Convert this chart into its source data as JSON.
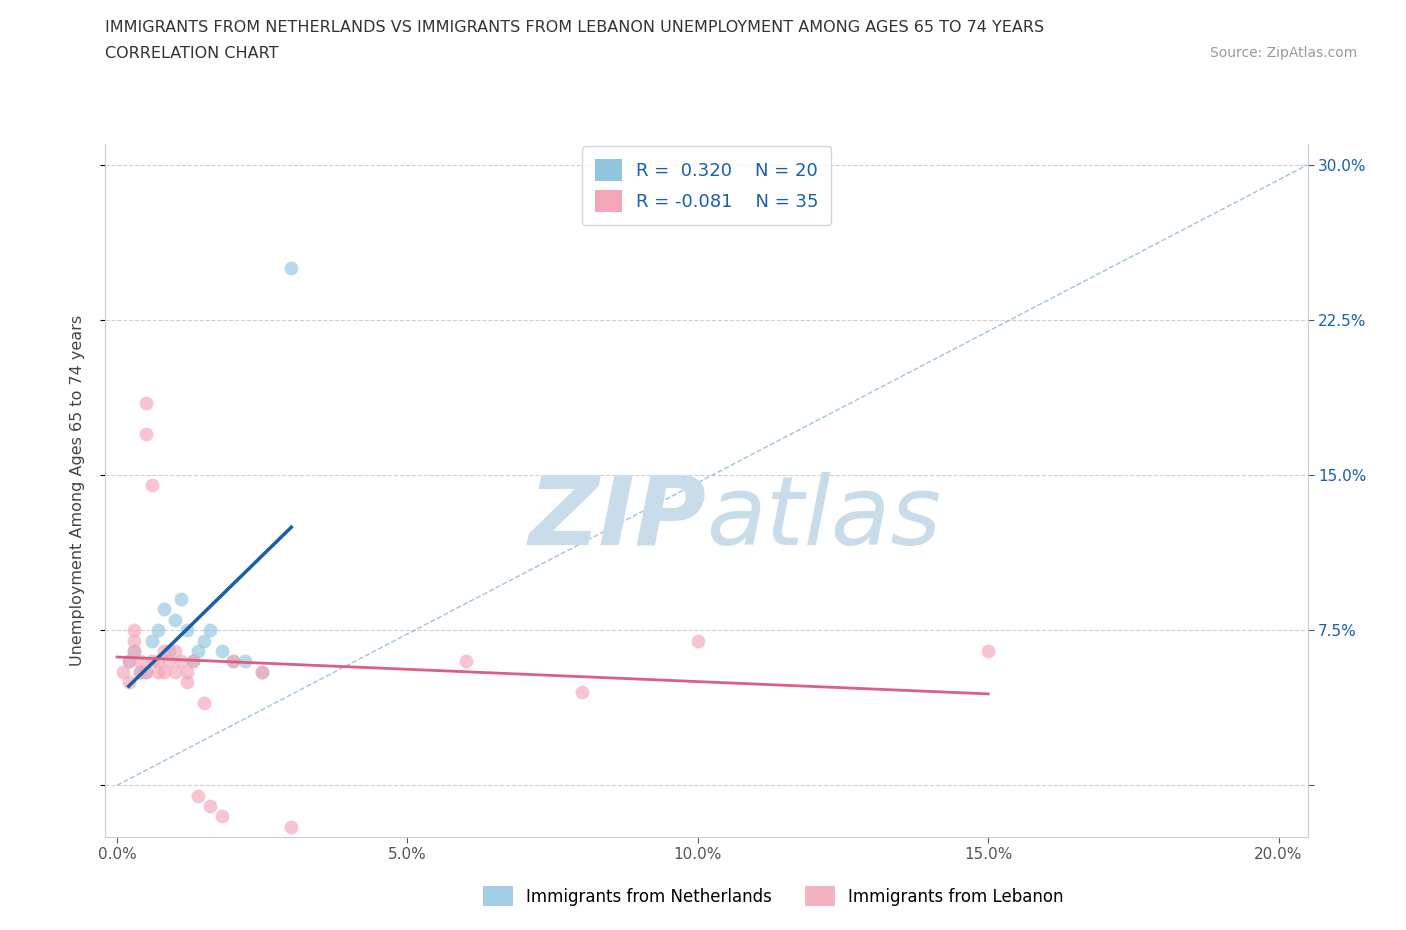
{
  "title_line1": "IMMIGRANTS FROM NETHERLANDS VS IMMIGRANTS FROM LEBANON UNEMPLOYMENT AMONG AGES 65 TO 74 YEARS",
  "title_line2": "CORRELATION CHART",
  "source_text": "Source: ZipAtlas.com",
  "ylabel": "Unemployment Among Ages 65 to 74 years",
  "legend_label1": "Immigrants from Netherlands",
  "legend_label2": "Immigrants from Lebanon",
  "r1": 0.32,
  "n1": 20,
  "r2": -0.081,
  "n2": 35,
  "xlim": [
    -0.002,
    0.205
  ],
  "ylim": [
    -0.025,
    0.31
  ],
  "xticks": [
    0.0,
    0.05,
    0.1,
    0.15,
    0.2
  ],
  "yticks": [
    0.0,
    0.075,
    0.15,
    0.225,
    0.3
  ],
  "xticklabels": [
    "0.0%",
    "5.0%",
    "10.0%",
    "15.0%",
    "20.0%"
  ],
  "yticklabels_right": [
    "",
    "7.5%",
    "15.0%",
    "22.5%",
    "30.0%"
  ],
  "color_netherlands": "#92c5de",
  "color_lebanon": "#f4a6b8",
  "scatter_alpha": 0.65,
  "scatter_size": 100,
  "background_color": "#ffffff",
  "grid_color": "#d0d0d0",
  "watermark_zip_color": "#c8dcea",
  "watermark_atlas_color": "#c8dcea",
  "netherlands_x": [
    0.002,
    0.003,
    0.004,
    0.005,
    0.006,
    0.007,
    0.008,
    0.009,
    0.01,
    0.011,
    0.012,
    0.013,
    0.014,
    0.015,
    0.016,
    0.018,
    0.02,
    0.022,
    0.025,
    0.03
  ],
  "netherlands_y": [
    0.06,
    0.065,
    0.055,
    0.055,
    0.07,
    0.075,
    0.085,
    0.065,
    0.08,
    0.09,
    0.075,
    0.06,
    0.065,
    0.07,
    0.075,
    0.065,
    0.06,
    0.06,
    0.055,
    0.25
  ],
  "lebanon_x": [
    0.001,
    0.002,
    0.002,
    0.003,
    0.003,
    0.003,
    0.004,
    0.004,
    0.005,
    0.005,
    0.005,
    0.006,
    0.006,
    0.007,
    0.007,
    0.008,
    0.008,
    0.009,
    0.01,
    0.01,
    0.011,
    0.012,
    0.012,
    0.013,
    0.014,
    0.015,
    0.016,
    0.018,
    0.02,
    0.025,
    0.03,
    0.06,
    0.08,
    0.1,
    0.15
  ],
  "lebanon_y": [
    0.055,
    0.05,
    0.06,
    0.07,
    0.065,
    0.075,
    0.055,
    0.06,
    0.17,
    0.185,
    0.055,
    0.145,
    0.06,
    0.055,
    0.06,
    0.065,
    0.055,
    0.06,
    0.055,
    0.065,
    0.06,
    0.055,
    0.05,
    0.06,
    -0.005,
    0.04,
    -0.01,
    -0.015,
    0.06,
    0.055,
    -0.02,
    0.06,
    0.045,
    0.07,
    0.065
  ],
  "regline_nl_color": "#1a5fa8",
  "regline_lb_color": "#d96080",
  "diag_color": "#8ab4d4",
  "tick_color": "#555555",
  "right_tick_color": "#1a5fa8"
}
